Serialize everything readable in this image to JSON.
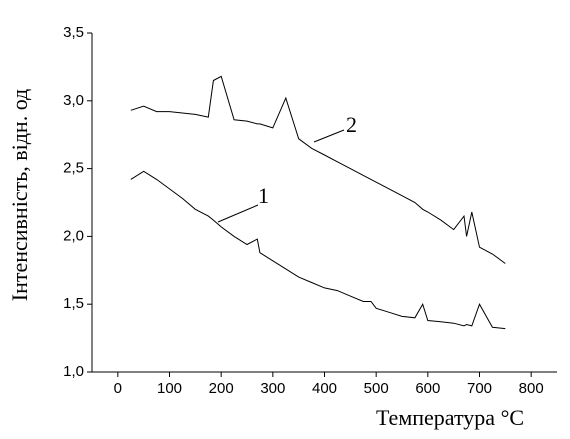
{
  "chart_data": {
    "type": "line",
    "x_label": "Температура °C",
    "y_label": "Інтенсивність, відн. од",
    "x": [
      25,
      50,
      75,
      100,
      125,
      150,
      175,
      185,
      200,
      225,
      250,
      270,
      275,
      300,
      325,
      350,
      375,
      400,
      425,
      450,
      475,
      490,
      500,
      525,
      550,
      575,
      590,
      600,
      625,
      650,
      670,
      675,
      685,
      700,
      725,
      750
    ],
    "series": [
      {
        "name": "1",
        "color": "#000000",
        "values": [
          2.42,
          2.48,
          2.42,
          2.35,
          2.28,
          2.2,
          2.15,
          2.12,
          2.07,
          2.0,
          1.94,
          1.98,
          1.88,
          1.82,
          1.76,
          1.7,
          1.66,
          1.62,
          1.6,
          1.56,
          1.52,
          1.52,
          1.47,
          1.44,
          1.41,
          1.4,
          1.5,
          1.38,
          1.37,
          1.36,
          1.34,
          1.35,
          1.34,
          1.5,
          1.33,
          1.32
        ]
      },
      {
        "name": "2",
        "color": "#000000",
        "values": [
          2.93,
          2.96,
          2.92,
          2.92,
          2.91,
          2.9,
          2.88,
          3.15,
          3.18,
          2.86,
          2.85,
          2.83,
          2.83,
          2.8,
          3.02,
          2.72,
          2.65,
          2.6,
          2.55,
          2.5,
          2.45,
          2.42,
          2.4,
          2.35,
          2.3,
          2.25,
          2.2,
          2.18,
          2.12,
          2.05,
          2.15,
          2.0,
          2.18,
          1.92,
          1.87,
          1.8
        ]
      }
    ],
    "xlim": [
      -50,
      850
    ],
    "xticks": [
      0,
      100,
      200,
      300,
      400,
      500,
      600,
      700,
      800
    ],
    "ylim": [
      1.0,
      3.5
    ],
    "yticks": [
      {
        "value": 1.0,
        "label": "1,0"
      },
      {
        "value": 1.5,
        "label": "1,5"
      },
      {
        "value": 2.0,
        "label": "2,0"
      },
      {
        "value": 2.5,
        "label": "2,5"
      },
      {
        "value": 3.0,
        "label": "3,0"
      },
      {
        "value": 3.5,
        "label": "3,5"
      }
    ]
  }
}
